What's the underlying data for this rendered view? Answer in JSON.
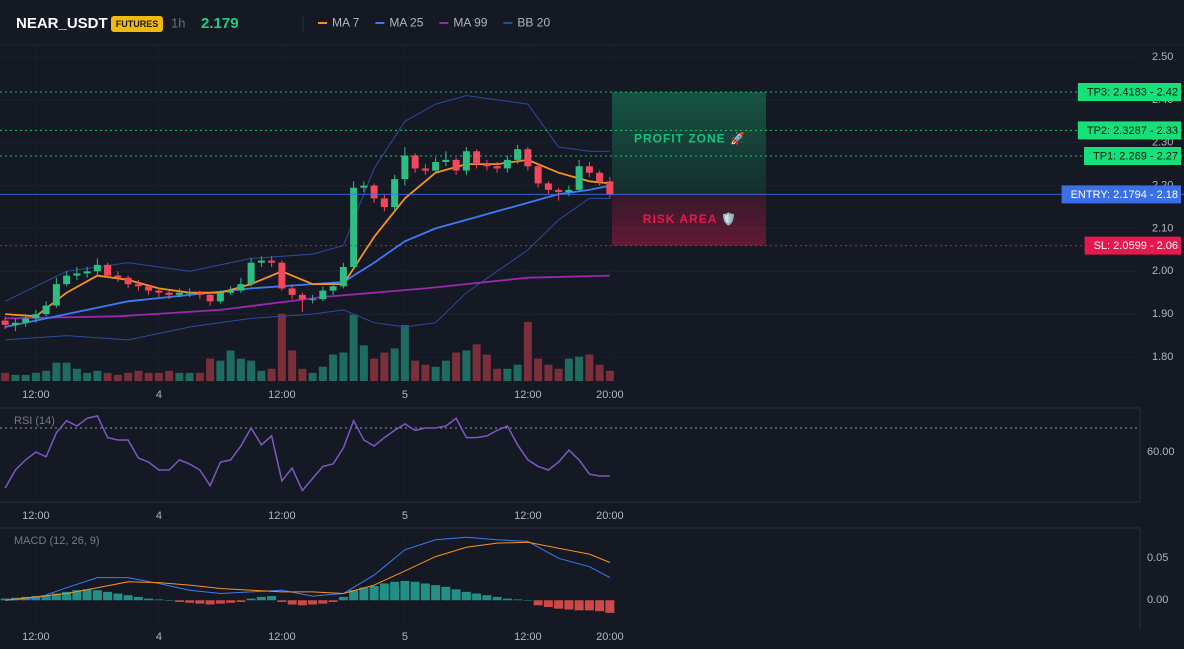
{
  "header": {
    "symbol": "NEAR_USDT",
    "badge": "FUTURES",
    "interval": "1h",
    "price": "2.179"
  },
  "chart_data": [
    {
      "type": "candlestick",
      "x": [
        9,
        10,
        11,
        12,
        13,
        14,
        15,
        16,
        17,
        18,
        19,
        20,
        21,
        22,
        23,
        24,
        25,
        26,
        27,
        28,
        29,
        30,
        31,
        32,
        33,
        34,
        35,
        36,
        37,
        38,
        39,
        40,
        41,
        42,
        43,
        44,
        45,
        46,
        47,
        48,
        49,
        50,
        51,
        52,
        53,
        54,
        55,
        56,
        57,
        58,
        59,
        60,
        61,
        62,
        63,
        64,
        65,
        66,
        67,
        68
      ],
      "open": [
        1.885,
        1.875,
        1.88,
        1.89,
        1.9,
        1.92,
        1.97,
        1.99,
        1.995,
        2.0,
        2.015,
        1.99,
        1.985,
        1.97,
        1.965,
        1.955,
        1.95,
        1.945,
        1.95,
        1.95,
        1.945,
        1.93,
        1.95,
        1.955,
        1.97,
        2.02,
        2.025,
        2.02,
        1.96,
        1.945,
        1.935,
        1.935,
        1.955,
        1.965,
        2.01,
        2.195,
        2.2,
        2.17,
        2.15,
        2.215,
        2.27,
        2.24,
        2.235,
        2.255,
        2.26,
        2.235,
        2.28,
        2.25,
        2.245,
        2.24,
        2.26,
        2.285,
        2.245,
        2.205,
        2.19,
        2.185,
        2.19,
        2.245,
        2.23,
        2.21
      ],
      "high": [
        1.895,
        1.89,
        1.9,
        1.91,
        1.93,
        1.985,
        2.0,
        2.01,
        2.01,
        2.03,
        2.02,
        2.0,
        1.99,
        1.98,
        1.97,
        1.96,
        1.955,
        1.96,
        1.96,
        1.955,
        1.95,
        1.955,
        1.965,
        1.985,
        2.03,
        2.035,
        2.035,
        2.025,
        1.97,
        1.95,
        1.945,
        1.965,
        1.975,
        2.02,
        2.21,
        2.21,
        2.205,
        2.18,
        2.225,
        2.29,
        2.275,
        2.25,
        2.265,
        2.28,
        2.265,
        2.29,
        2.285,
        2.26,
        2.255,
        2.27,
        2.295,
        2.29,
        2.25,
        2.21,
        2.195,
        2.2,
        2.26,
        2.255,
        2.235,
        2.22
      ],
      "low": [
        1.865,
        1.86,
        1.87,
        1.88,
        1.895,
        1.915,
        1.965,
        1.98,
        1.985,
        1.99,
        1.985,
        1.975,
        1.96,
        1.955,
        1.945,
        1.94,
        1.935,
        1.94,
        1.94,
        1.935,
        1.92,
        1.925,
        1.945,
        1.95,
        1.965,
        2.01,
        2.01,
        1.955,
        1.935,
        1.905,
        1.925,
        1.93,
        1.945,
        1.96,
        2.005,
        2.185,
        2.16,
        2.14,
        2.14,
        2.2,
        2.23,
        2.225,
        2.23,
        2.245,
        2.225,
        2.225,
        2.24,
        2.235,
        2.23,
        2.23,
        2.25,
        2.235,
        2.195,
        2.18,
        2.165,
        2.175,
        2.185,
        2.22,
        2.2,
        2.17
      ],
      "close": [
        1.875,
        1.88,
        1.89,
        1.9,
        1.92,
        1.97,
        1.99,
        1.995,
        2.0,
        2.015,
        1.99,
        1.985,
        1.97,
        1.965,
        1.955,
        1.95,
        1.945,
        1.95,
        1.95,
        1.945,
        1.93,
        1.95,
        1.955,
        1.97,
        2.02,
        2.025,
        2.02,
        1.96,
        1.945,
        1.935,
        1.935,
        1.955,
        1.965,
        2.01,
        2.195,
        2.2,
        2.17,
        2.15,
        2.215,
        2.27,
        2.24,
        2.235,
        2.255,
        2.26,
        2.235,
        2.28,
        2.25,
        2.245,
        2.24,
        2.26,
        2.285,
        2.245,
        2.205,
        2.19,
        2.185,
        2.19,
        2.245,
        2.23,
        2.21,
        2.179
      ],
      "up_color": "#2ebd85",
      "down_color": "#f6465d",
      "volume": [
        8,
        6,
        6,
        8,
        10,
        18,
        18,
        12,
        8,
        10,
        8,
        6,
        8,
        10,
        8,
        8,
        10,
        8,
        8,
        8,
        22,
        20,
        30,
        22,
        20,
        10,
        12,
        66,
        30,
        12,
        8,
        14,
        26,
        28,
        65,
        35,
        22,
        28,
        32,
        55,
        20,
        16,
        14,
        20,
        28,
        30,
        36,
        26,
        12,
        12,
        16,
        58,
        22,
        16,
        12,
        22,
        24,
        26,
        16,
        10
      ],
      "volume_lim": [
        0,
        330
      ],
      "volume_up_color": "#1e6b5f",
      "volume_down_color": "#7b2f3b",
      "xlim": [
        8.5,
        120.5
      ],
      "xticks": [
        {
          "value": 12,
          "label": "12:00"
        },
        {
          "value": 24,
          "label": "4"
        },
        {
          "value": 36,
          "label": "12:00"
        },
        {
          "value": 48,
          "label": "5"
        },
        {
          "value": 60,
          "label": "12:00"
        },
        {
          "value": 68,
          "label": "20:00"
        }
      ],
      "ylim": [
        1.744,
        2.528
      ],
      "yticks": [
        {
          "value": 2.5,
          "label": "2.50"
        },
        {
          "value": 2.4,
          "label": "2.40"
        },
        {
          "value": 2.3,
          "label": "2.30"
        },
        {
          "value": 2.2,
          "label": "2.20"
        },
        {
          "value": 2.1,
          "label": "2.10"
        },
        {
          "value": 2.0,
          "label": "2.00"
        },
        {
          "value": 1.9,
          "label": "1.90"
        },
        {
          "value": 1.8,
          "label": "1.80"
        }
      ],
      "grid": true,
      "series": [
        {
          "name": "MA 7",
          "color": "#f7931a",
          "x": [
            9,
            12,
            15,
            18,
            21,
            24,
            27,
            30,
            33,
            36,
            39,
            42,
            45,
            48,
            51,
            54,
            57,
            60,
            63,
            66,
            68
          ],
          "values": [
            1.9,
            1.895,
            1.95,
            1.99,
            1.98,
            1.96,
            1.95,
            1.95,
            1.97,
            2.0,
            1.97,
            1.97,
            2.08,
            2.17,
            2.23,
            2.25,
            2.25,
            2.26,
            2.23,
            2.21,
            2.205
          ]
        },
        {
          "name": "MA 25",
          "color": "#3d7bf5",
          "x": [
            9,
            15,
            21,
            27,
            33,
            39,
            42,
            45,
            48,
            51,
            54,
            57,
            60,
            63,
            66,
            68
          ],
          "values": [
            1.87,
            1.9,
            1.93,
            1.945,
            1.96,
            1.97,
            1.975,
            2.02,
            2.07,
            2.1,
            2.12,
            2.14,
            2.16,
            2.18,
            2.19,
            2.2
          ]
        },
        {
          "name": "MA 99",
          "color": "#9c27b0",
          "x": [
            9,
            20,
            30,
            40,
            50,
            60,
            68
          ],
          "values": [
            1.89,
            1.895,
            1.91,
            1.94,
            1.96,
            1.985,
            1.99
          ]
        },
        {
          "name": "BB 20",
          "color": "#2b4c9b",
          "x": [
            9,
            15,
            21,
            27,
            33,
            39,
            42,
            45,
            48,
            51,
            54,
            57,
            60,
            63,
            66,
            68
          ],
          "values": [
            1.93,
            2.0,
            2.02,
            2.0,
            2.03,
            2.04,
            2.06,
            2.24,
            2.35,
            2.39,
            2.41,
            2.4,
            2.39,
            2.29,
            2.28,
            2.28
          ],
          "lower": [
            1.84,
            1.85,
            1.84,
            1.87,
            1.89,
            1.9,
            1.91,
            1.88,
            1.87,
            1.88,
            1.95,
            2.0,
            2.05,
            2.12,
            2.17,
            2.17
          ]
        }
      ],
      "levels": [
        {
          "label": "TP3: 2.4183 - 2.42",
          "value": 2.4183,
          "color": "#16e07a",
          "style": "dotted"
        },
        {
          "label": "TP2: 2.3287 - 2.33",
          "value": 2.3287,
          "color": "#16e07a",
          "style": "dotted"
        },
        {
          "label": "TP1: 2.269 - 2.27",
          "value": 2.269,
          "color": "#16e07a",
          "style": "dotted"
        },
        {
          "label": "ENTRY: 2.1794 - 2.18",
          "value": 2.1794,
          "color": "#3b6fe8",
          "style": "solid"
        },
        {
          "label": "SL: 2.0599 - 2.06",
          "value": 2.0599,
          "color": "#e5184f",
          "style": "dotted"
        }
      ],
      "zones": [
        {
          "label": "PROFIT ZONE 🚀",
          "from": 2.1794,
          "to": 2.4183,
          "color": "#16c27a"
        },
        {
          "label": "RISK AREA 🛡️",
          "from": 2.0599,
          "to": 2.1794,
          "color": "#e5184f"
        }
      ]
    },
    {
      "type": "line",
      "title": "RSI (14)",
      "x": [
        9,
        10,
        11,
        12,
        13,
        14,
        15,
        16,
        17,
        18,
        19,
        20,
        21,
        22,
        23,
        24,
        25,
        26,
        27,
        28,
        29,
        30,
        31,
        32,
        33,
        34,
        35,
        36,
        37,
        38,
        39,
        40,
        41,
        42,
        43,
        44,
        45,
        46,
        47,
        48,
        49,
        50,
        51,
        52,
        53,
        54,
        55,
        56,
        57,
        58,
        59,
        60,
        61,
        62,
        63,
        64,
        65,
        66,
        67,
        68
      ],
      "values": [
        45,
        52.5,
        56.7,
        60,
        58,
        68,
        73,
        70.8,
        74,
        75,
        66,
        65,
        65,
        57.5,
        55.8,
        52.5,
        52.5,
        56.7,
        55,
        52.5,
        46,
        55.8,
        56.7,
        62.5,
        70,
        63,
        66.7,
        48,
        53.3,
        44,
        49,
        54,
        55,
        61.7,
        73,
        65,
        62.5,
        66,
        69,
        71.7,
        69,
        70,
        70,
        70.8,
        74,
        66,
        66,
        66.7,
        69,
        70.8,
        63,
        56.7,
        54,
        52.5,
        55.8,
        60.8,
        56.7,
        50.8,
        50,
        50
      ],
      "color": "#7e57c2",
      "xlim": [
        8.5,
        120.5
      ],
      "xticks": [
        {
          "value": 12,
          "label": "12:00"
        },
        {
          "value": 24,
          "label": "4"
        },
        {
          "value": 36,
          "label": "12:00"
        },
        {
          "value": 48,
          "label": "5"
        },
        {
          "value": 60,
          "label": "12:00"
        },
        {
          "value": 68,
          "label": "20:00"
        }
      ],
      "ylim": [
        39.2,
        78.3
      ],
      "yticks": [
        {
          "value": 60,
          "label": "60.00"
        }
      ],
      "levels": [
        70
      ]
    },
    {
      "type": "macd",
      "title": "MACD (12, 26, 9)",
      "x": [
        9,
        10,
        11,
        12,
        13,
        14,
        15,
        16,
        17,
        18,
        19,
        20,
        21,
        22,
        23,
        24,
        25,
        26,
        27,
        28,
        29,
        30,
        31,
        32,
        33,
        34,
        35,
        36,
        37,
        38,
        39,
        40,
        41,
        42,
        43,
        44,
        45,
        46,
        47,
        48,
        49,
        50,
        51,
        52,
        53,
        54,
        55,
        56,
        57,
        58,
        59,
        60,
        61,
        62,
        63,
        64,
        65,
        66,
        67,
        68
      ],
      "histogram": [
        0.002,
        0.003,
        0.004,
        0.005,
        0.006,
        0.008,
        0.01,
        0.012,
        0.013,
        0.012,
        0.01,
        0.008,
        0.006,
        0.004,
        0.002,
        0.001,
        0,
        -0.002,
        -0.003,
        -0.004,
        -0.005,
        -0.004,
        -0.003,
        -0.002,
        0.002,
        0.004,
        0.005,
        -0.002,
        -0.005,
        -0.006,
        -0.005,
        -0.004,
        -0.002,
        0.004,
        0.012,
        0.015,
        0.017,
        0.02,
        0.022,
        0.023,
        0.022,
        0.02,
        0.018,
        0.016,
        0.013,
        0.01,
        0.008,
        0.006,
        0.004,
        0.002,
        0.001,
        0,
        -0.006,
        -0.008,
        -0.01,
        -0.011,
        -0.012,
        -0.012,
        -0.013,
        -0.015
      ],
      "up_color": "#26a69a",
      "down_color": "#ef5350",
      "series": [
        {
          "color": "#3d7bf5",
          "x": [
            9,
            12,
            15,
            18,
            21,
            24,
            27,
            30,
            33,
            36,
            39,
            42,
            45,
            48,
            51,
            54,
            57,
            60,
            63,
            66,
            68
          ],
          "values": [
            0,
            0.002,
            0.015,
            0.027,
            0.027,
            0.02,
            0.012,
            0.008,
            0.01,
            0.012,
            0.005,
            0.008,
            0.03,
            0.06,
            0.072,
            0.075,
            0.072,
            0.07,
            0.05,
            0.04,
            0.027
          ]
        },
        {
          "color": "#f7931a",
          "x": [
            9,
            15,
            18,
            21,
            24,
            27,
            30,
            33,
            36,
            39,
            42,
            45,
            48,
            51,
            54,
            57,
            60,
            63,
            66,
            68
          ],
          "values": [
            0,
            0.008,
            0.015,
            0.022,
            0.021,
            0.018,
            0.014,
            0.012,
            0.01,
            0.01,
            0.008,
            0.018,
            0.035,
            0.052,
            0.063,
            0.068,
            0.069,
            0.062,
            0.055,
            0.045
          ]
        }
      ],
      "xlim": [
        8.5,
        120.5
      ],
      "xticks": [
        {
          "value": 12,
          "label": "12:00"
        },
        {
          "value": 24,
          "label": "4"
        },
        {
          "value": 36,
          "label": "12:00"
        },
        {
          "value": 48,
          "label": "5"
        },
        {
          "value": 60,
          "label": "12:00"
        },
        {
          "value": 68,
          "label": "20:00"
        }
      ],
      "ylim": [
        -0.033,
        0.086
      ],
      "yticks": [
        {
          "value": 0.05,
          "label": "0.05"
        },
        {
          "value": 0,
          "label": "0.00"
        }
      ]
    }
  ]
}
